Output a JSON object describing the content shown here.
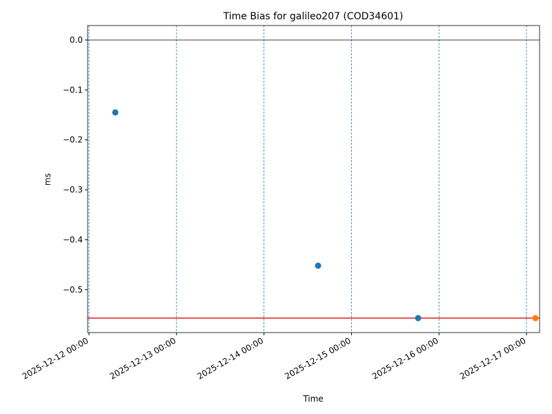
{
  "chart_data": {
    "type": "scatter",
    "title": "Time Bias for galileo207 (COD34601)",
    "xlabel": "Time",
    "ylabel": "ms",
    "series": [
      {
        "color": "#1f77b4",
        "x": [
          "2025-12-12 07:12",
          "2025-12-14 14:50",
          "2025-12-15 18:17"
        ],
        "values": [
          -0.145,
          -0.452,
          -0.557
        ]
      },
      {
        "color": "#ff7f0e",
        "x": [
          "2025-12-17 02:27"
        ],
        "values": [
          -0.557
        ]
      }
    ],
    "hlines": [
      {
        "value": 0,
        "color": "#000000"
      },
      {
        "value": -0.557,
        "color": "#e41a1c"
      }
    ],
    "xlim": [
      "2025-12-11 23:37",
      "2025-12-17 03:36"
    ],
    "xticks": [
      "2025-12-12 00:00",
      "2025-12-13 00:00",
      "2025-12-14 00:00",
      "2025-12-15 00:00",
      "2025-12-16 00:00",
      "2025-12-17 00:00"
    ],
    "ylim": [
      -0.586,
      0.029
    ],
    "yticks": [
      {
        "value": 0,
        "label": "0.0"
      },
      {
        "value": -0.1,
        "label": "−0.1"
      },
      {
        "value": -0.2,
        "label": "−0.2"
      },
      {
        "value": -0.3,
        "label": "−0.3"
      },
      {
        "value": -0.4,
        "label": "−0.4"
      },
      {
        "value": -0.5,
        "label": "−0.5"
      }
    ],
    "grid": "x",
    "grid_color": "#1f77b4"
  }
}
